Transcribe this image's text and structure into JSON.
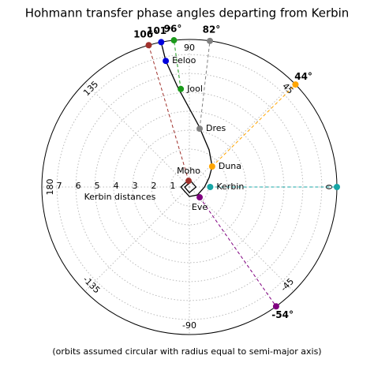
{
  "chart_data": {
    "type": "polar",
    "title": "Hohmann transfer phase angles departing from Kerbin",
    "footnote": "(orbits assumed circular with radius equal to semi-major axis)",
    "rlabel": "Kerbin distances",
    "rlim": [
      0,
      7.8
    ],
    "rticks": [
      1,
      2,
      3,
      4,
      5,
      6,
      7
    ],
    "thetaticks": [
      0,
      45,
      90,
      135,
      180,
      -135,
      -90,
      -45
    ],
    "grid": true,
    "curve": {
      "color": "#000000",
      "r": [
        7.64,
        6.78,
        5.33,
        3.25,
        2.22,
        1.62,
        1.16,
        0.8,
        0.6,
        0.5,
        0.45,
        0.4,
        0.35,
        0.3,
        0.25,
        0.2
      ],
      "theta": [
        101,
        100.6,
        96.7,
        81,
        62,
        42,
        25.6,
        0,
        -45,
        -90,
        180,
        90,
        0,
        -90,
        180,
        90
      ]
    },
    "series": [
      {
        "name": "Moho",
        "color": "#a0312c",
        "r": 0.33,
        "theta": 97,
        "phase": 106,
        "phase_label": "106°"
      },
      {
        "name": "Eeloo",
        "color": "#0000dd",
        "r": 6.78,
        "theta": 100.6,
        "phase": 101,
        "phase_label": "101°"
      },
      {
        "name": "Jool",
        "color": "#1a9a1a",
        "r": 5.2,
        "theta": 95,
        "phase": 96,
        "phase_label": "96°"
      },
      {
        "name": "Dres",
        "color": "#808080",
        "r": 3.13,
        "theta": 80,
        "phase": 82,
        "phase_label": "82°"
      },
      {
        "name": "Duna",
        "color": "#ffa500",
        "r": 1.62,
        "theta": 42,
        "phase": 44,
        "phase_label": "44°"
      },
      {
        "name": "Kerbin",
        "color": "#17a5a5",
        "r": 1.1,
        "theta": 0,
        "phase": 0
      },
      {
        "name": "Eve",
        "color": "#800080",
        "r": 0.77,
        "theta": -45,
        "phase": -54,
        "phase_label": "-54°"
      }
    ]
  }
}
